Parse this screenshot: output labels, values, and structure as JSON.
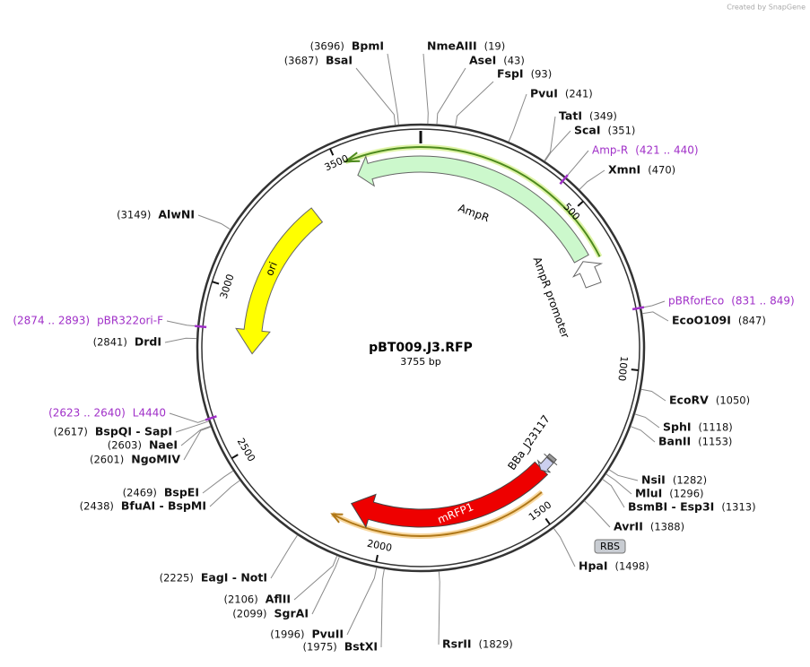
{
  "header": {
    "credit": "Created by SnapGene"
  },
  "plasmid": {
    "name": "pBT009.J3.RFP",
    "length": "3755 bp",
    "ticks": [
      500,
      1000,
      1500,
      2000,
      2500,
      3000,
      3500
    ]
  },
  "sites": [
    {
      "name": "BpmI",
      "position": "(3696)"
    },
    {
      "name": "BsaI",
      "position": "(3687)"
    },
    {
      "name": "NmeAIII",
      "position": "(19)"
    },
    {
      "name": "AseI",
      "position": "(43)"
    },
    {
      "name": "FspI",
      "position": "(93)"
    },
    {
      "name": "PvuI",
      "position": "(241)"
    },
    {
      "name": "TatI",
      "position": "(349)"
    },
    {
      "name": "ScaI",
      "position": "(351)"
    },
    {
      "name": "XmnI",
      "position": "(470)"
    },
    {
      "name": "EcoO109I",
      "position": "(847)"
    },
    {
      "name": "EcoRV",
      "position": "(1050)"
    },
    {
      "name": "SphI",
      "position": "(1118)"
    },
    {
      "name": "BanII",
      "position": "(1153)"
    },
    {
      "name": "NsiI",
      "position": "(1282)"
    },
    {
      "name": "MluI",
      "position": "(1296)"
    },
    {
      "name": "BsmBI - Esp3I",
      "position": "(1313)"
    },
    {
      "name": "AvrII",
      "position": "(1388)"
    },
    {
      "name": "HpaI",
      "position": "(1498)"
    },
    {
      "name": "RsrII",
      "position": "(1829)"
    },
    {
      "name": "BstXI",
      "position": "(1975)"
    },
    {
      "name": "PvuII",
      "position": "(1996)"
    },
    {
      "name": "SgrAI",
      "position": "(2099)"
    },
    {
      "name": "AflII",
      "position": "(2106)"
    },
    {
      "name": "EagI - NotI",
      "position": "(2225)"
    },
    {
      "name": "BfuAI - BspMI",
      "position": "(2438)"
    },
    {
      "name": "BspEI",
      "position": "(2469)"
    },
    {
      "name": "NgoMIV",
      "position": "(2601)"
    },
    {
      "name": "NaeI",
      "position": "(2603)"
    },
    {
      "name": "BspQI - SapI",
      "position": "(2617)"
    },
    {
      "name": "DrdI",
      "position": "(2841)"
    },
    {
      "name": "AlwNI",
      "position": "(3149)"
    }
  ],
  "primers": [
    {
      "name": "Amp-R",
      "range": "(421 .. 440)"
    },
    {
      "name": "pBRforEco",
      "range": "(831 .. 849)"
    },
    {
      "name": "L4440",
      "range": "(2623 .. 2640)"
    },
    {
      "name": "pBR322ori-F",
      "range": "(2874 .. 2893)"
    }
  ],
  "features": [
    {
      "name": "AmpR"
    },
    {
      "name": "AmpR promoter"
    },
    {
      "name": "ori"
    },
    {
      "name": "mRFP1"
    },
    {
      "name": "BBa_J23117"
    },
    {
      "name": "RBS"
    }
  ]
}
